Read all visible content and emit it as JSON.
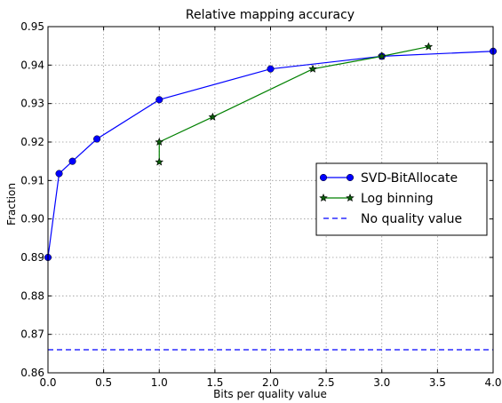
{
  "chart_data": {
    "type": "line",
    "title": "Relative mapping accuracy",
    "xlabel": "Bits per quality value",
    "ylabel": "Fraction",
    "xlim": [
      0.0,
      4.0
    ],
    "ylim": [
      0.86,
      0.95
    ],
    "xticks": [
      "0.0",
      "0.5",
      "1.0",
      "1.5",
      "2.0",
      "2.5",
      "3.0",
      "3.5",
      "4.0"
    ],
    "yticks": [
      "0.86",
      "0.87",
      "0.88",
      "0.89",
      "0.90",
      "0.91",
      "0.92",
      "0.93",
      "0.94",
      "0.95"
    ],
    "grid": true,
    "legend_position": "center-right",
    "series": [
      {
        "name": "SVD-BitAllocate",
        "color": "#0000ff",
        "marker": "circle",
        "line": "solid",
        "x": [
          0.0,
          0.1,
          0.22,
          0.44,
          1.0,
          2.0,
          3.0,
          4.0
        ],
        "y": [
          0.89,
          0.9118,
          0.915,
          0.9208,
          0.931,
          0.939,
          0.9423,
          0.9436
        ]
      },
      {
        "name": "Log binning",
        "color": "#008000",
        "marker": "star",
        "line": "solid",
        "x": [
          1.0,
          1.0,
          1.48,
          2.38,
          3.0,
          3.42
        ],
        "y": [
          0.9148,
          0.92,
          0.9265,
          0.939,
          0.9423,
          0.9448
        ]
      },
      {
        "name": "No quality value",
        "color": "#0000ff",
        "marker": "none",
        "line": "dashed",
        "x": [
          0.0,
          4.0
        ],
        "y": [
          0.866,
          0.866
        ]
      }
    ]
  }
}
